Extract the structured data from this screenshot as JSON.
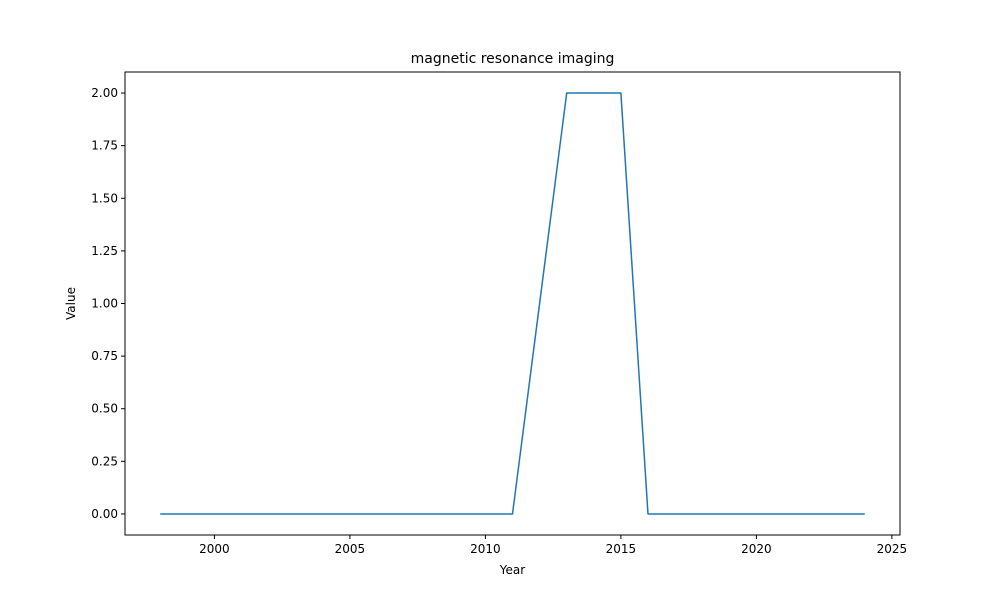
{
  "chart_data": {
    "type": "line",
    "title": "magnetic resonance imaging",
    "xlabel": "Year",
    "ylabel": "Value",
    "xlim": [
      1996.7,
      2025.3
    ],
    "ylim": [
      -0.1,
      2.1
    ],
    "xticks": [
      2000,
      2005,
      2010,
      2015,
      2020,
      2025
    ],
    "xtick_labels": [
      "2000",
      "2005",
      "2010",
      "2015",
      "2020",
      "2025"
    ],
    "yticks": [
      0,
      0.25,
      0.5,
      0.75,
      1.0,
      1.25,
      1.5,
      1.75,
      2.0
    ],
    "ytick_labels": [
      "0.00",
      "0.25",
      "0.50",
      "0.75",
      "1.00",
      "1.25",
      "1.50",
      "1.75",
      "2.00"
    ],
    "grid": false,
    "series": [
      {
        "color": "#1f77b4",
        "x": [
          1998,
          1999,
          2000,
          2001,
          2002,
          2003,
          2004,
          2005,
          2006,
          2007,
          2008,
          2009,
          2010,
          2011,
          2012,
          2013,
          2014,
          2015,
          2016,
          2017,
          2018,
          2019,
          2020,
          2021,
          2022,
          2023,
          2024
        ],
        "y": [
          0,
          0,
          0,
          0,
          0,
          0,
          0,
          0,
          0,
          0,
          0,
          0,
          0,
          0,
          1,
          2,
          2,
          2,
          0,
          0,
          0,
          0,
          0,
          0,
          0,
          0,
          0
        ]
      }
    ]
  }
}
